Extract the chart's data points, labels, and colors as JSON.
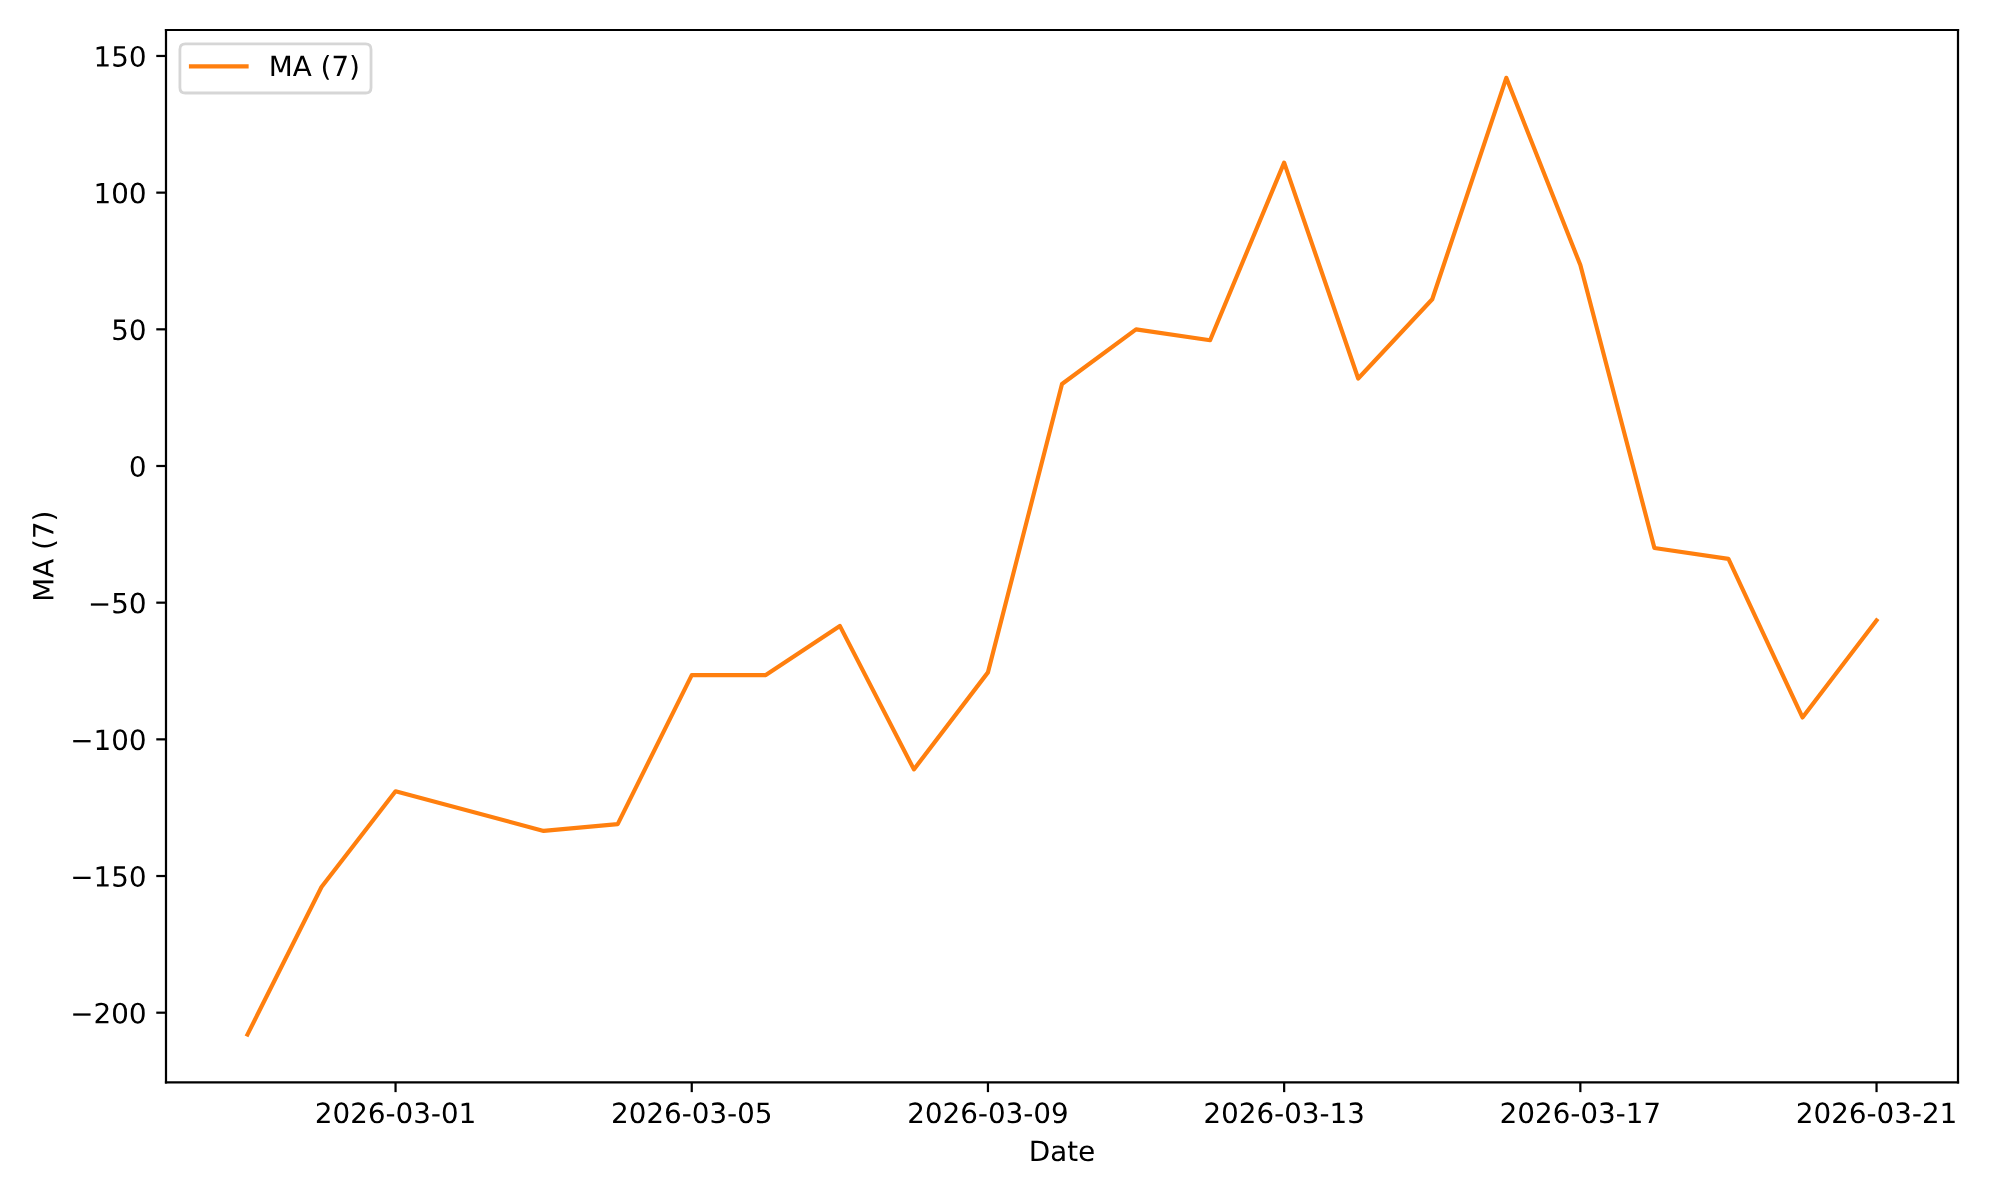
{
  "chart_data": {
    "type": "line",
    "xlabel": "Date",
    "ylabel": "MA (7)",
    "x": [
      "2026-02-27",
      "2026-02-28",
      "2026-03-01",
      "2026-03-03",
      "2026-03-04",
      "2026-03-05",
      "2026-03-06",
      "2026-03-07",
      "2026-03-08",
      "2026-03-09",
      "2026-03-10",
      "2026-03-11",
      "2026-03-12",
      "2026-03-13",
      "2026-03-14",
      "2026-03-15",
      "2026-03-16",
      "2026-03-17",
      "2026-03-18",
      "2026-03-19",
      "2026-03-20",
      "2026-03-21"
    ],
    "series": [
      {
        "name": "MA (7)",
        "color": "#ff7f0e",
        "values": [
          -208,
          -154,
          -119,
          -133.5,
          -131,
          -76.5,
          -76.5,
          -58.5,
          -111,
          -75.5,
          30,
          50,
          46,
          111,
          32,
          61,
          142,
          73.5,
          -30,
          -34,
          -92,
          -56.5
        ]
      }
    ],
    "xlim": [
      "2026-02-25T21:36",
      "2026-03-22T02:24"
    ],
    "xticks": [
      "2026-03-01",
      "2026-03-05",
      "2026-03-09",
      "2026-03-13",
      "2026-03-17",
      "2026-03-21"
    ],
    "ylim": [
      -225.5,
      159.5
    ],
    "yticks": [
      {
        "value": -200,
        "label": "−200"
      },
      {
        "value": -150,
        "label": "−150"
      },
      {
        "value": -100,
        "label": "−100"
      },
      {
        "value": -50,
        "label": "−50"
      },
      0,
      50,
      100,
      150
    ],
    "legend": "top left",
    "grid": false,
    "line_style": "solid"
  }
}
